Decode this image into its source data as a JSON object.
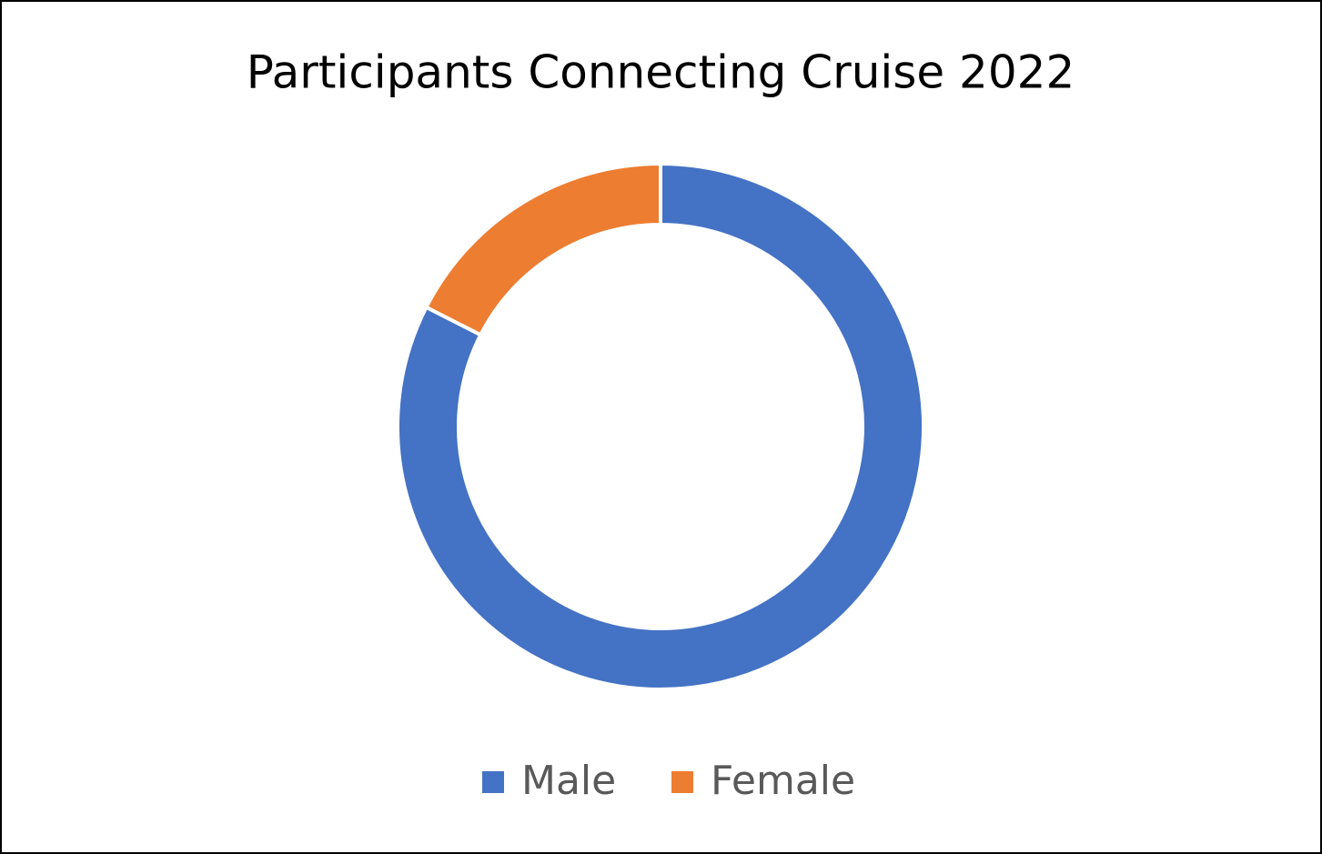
{
  "chart_data": {
    "type": "donut",
    "title": "Participants Connecting Cruise 2022",
    "categories": [
      "Male",
      "Female"
    ],
    "values": [
      82.5,
      17.5
    ],
    "colors": [
      "#4472c4",
      "#ed7d31"
    ],
    "legend": "bottom"
  }
}
